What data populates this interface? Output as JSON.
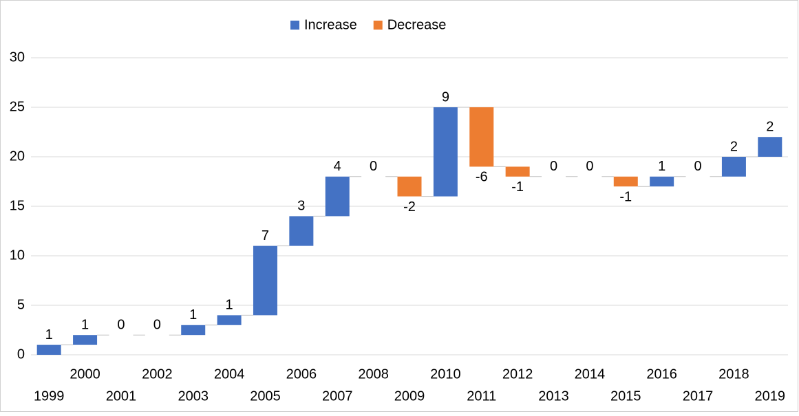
{
  "chart_data": {
    "type": "waterfall",
    "categories": [
      "1999",
      "2000",
      "2001",
      "2002",
      "2003",
      "2004",
      "2005",
      "2006",
      "2007",
      "2008",
      "2009",
      "2010",
      "2011",
      "2012",
      "2013",
      "2014",
      "2015",
      "2016",
      "2017",
      "2018",
      "2019"
    ],
    "values": [
      1,
      1,
      0,
      0,
      1,
      1,
      7,
      3,
      4,
      0,
      -2,
      9,
      -6,
      -1,
      0,
      0,
      -1,
      1,
      0,
      2,
      2
    ],
    "legend": [
      {
        "name": "Increase",
        "color": "#4472c4"
      },
      {
        "name": "Decrease",
        "color": "#ed7d31"
      }
    ],
    "ylim": [
      0,
      30
    ],
    "yticks": [
      0,
      5,
      10,
      15,
      20,
      25,
      30
    ],
    "grid": true
  }
}
